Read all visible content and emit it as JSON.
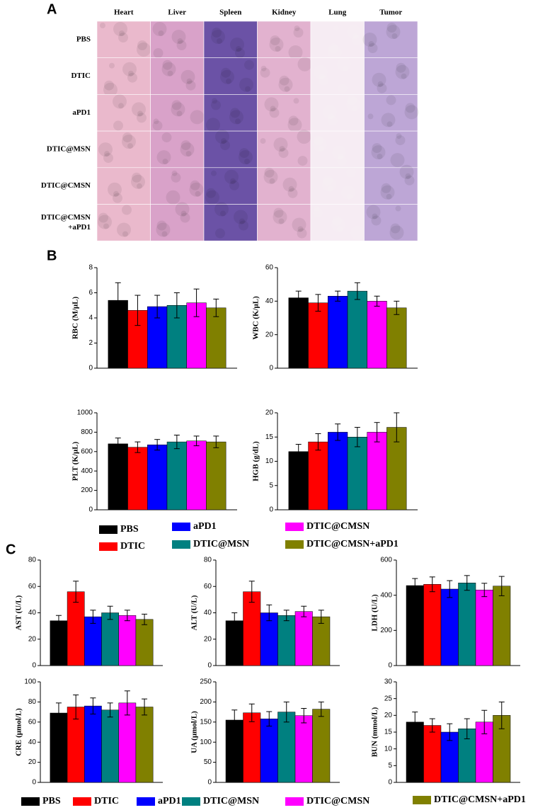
{
  "panel_labels": [
    "A",
    "B",
    "C"
  ],
  "histology": {
    "columns": [
      "Heart",
      "Liver",
      "Spleen",
      "Kidney",
      "Lung",
      "Tumor"
    ],
    "rows": [
      [
        "PBS"
      ],
      [
        "DTIC"
      ],
      [
        "aPD1"
      ],
      [
        "DTIC@MSN"
      ],
      [
        "DTIC@CMSN"
      ],
      [
        "DTIC@CMSN",
        "+aPD1"
      ]
    ]
  },
  "legend": {
    "items": [
      {
        "name": "PBS",
        "color": "#000000"
      },
      {
        "name": "DTIC",
        "color": "#ff0000"
      },
      {
        "name": "aPD1",
        "color": "#0000ff"
      },
      {
        "name": "DTIC@MSN",
        "color": "#008080"
      },
      {
        "name": "DTIC@CMSN",
        "color": "#ff00ff"
      },
      {
        "name": "DTIC@CMSN+aPD1",
        "color": "#808000"
      }
    ]
  },
  "chart_data": [
    {
      "type": "bar",
      "ylabel": "RBC (M/μL)",
      "ylim": [
        0,
        8
      ],
      "yticks": [
        0,
        2,
        4,
        6,
        8
      ],
      "values": [
        5.4,
        4.6,
        4.9,
        5.0,
        5.2,
        4.8
      ],
      "errors": [
        1.4,
        1.2,
        0.9,
        1.0,
        1.1,
        0.7
      ]
    },
    {
      "type": "bar",
      "ylabel": "WBC (K/μL)",
      "ylim": [
        0,
        60
      ],
      "yticks": [
        0,
        20,
        40,
        60
      ],
      "values": [
        42,
        39,
        43,
        46,
        40,
        36
      ],
      "errors": [
        4,
        5,
        3,
        5,
        3,
        4
      ]
    },
    {
      "type": "bar",
      "ylabel": "PLT (K/μL)",
      "ylim": [
        0,
        1000
      ],
      "yticks": [
        0,
        200,
        400,
        600,
        800,
        1000
      ],
      "values": [
        680,
        645,
        670,
        700,
        710,
        700
      ],
      "errors": [
        60,
        55,
        55,
        70,
        50,
        60
      ]
    },
    {
      "type": "bar",
      "ylabel": "HGB (g/dL)",
      "ylim": [
        0,
        20
      ],
      "yticks": [
        0,
        5,
        10,
        15,
        20
      ],
      "values": [
        12,
        14,
        16,
        15,
        16,
        17
      ],
      "errors": [
        1.5,
        1.7,
        1.7,
        2,
        2,
        3
      ]
    },
    {
      "type": "bar",
      "ylabel": "AST (U/L)",
      "ylim": [
        0,
        80
      ],
      "yticks": [
        0,
        20,
        40,
        60,
        80
      ],
      "values": [
        34,
        56,
        37,
        40,
        38,
        35
      ],
      "errors": [
        4,
        8,
        5,
        5,
        4,
        4
      ]
    },
    {
      "type": "bar",
      "ylabel": "ALT (U/L)",
      "ylim": [
        0,
        80
      ],
      "yticks": [
        0,
        20,
        40,
        60,
        80
      ],
      "values": [
        34,
        56,
        40,
        38,
        41,
        37
      ],
      "errors": [
        6,
        8,
        6,
        4,
        4,
        5
      ]
    },
    {
      "type": "bar",
      "ylabel": "LDH (U/L)",
      "ylim": [
        0,
        600
      ],
      "yticks": [
        0,
        200,
        400,
        600
      ],
      "values": [
        455,
        462,
        435,
        470,
        430,
        452
      ],
      "errors": [
        40,
        42,
        48,
        42,
        38,
        55
      ]
    },
    {
      "type": "bar",
      "ylabel": "CRE (μmol/L)",
      "ylim": [
        0,
        100
      ],
      "yticks": [
        0,
        20,
        40,
        60,
        80,
        100
      ],
      "values": [
        69,
        75,
        76,
        72,
        79,
        75
      ],
      "errors": [
        10,
        12,
        8,
        7,
        12,
        8
      ]
    },
    {
      "type": "bar",
      "ylabel": "UA (μmol/L)",
      "ylim": [
        0,
        250
      ],
      "yticks": [
        0,
        50,
        100,
        150,
        200,
        250
      ],
      "values": [
        155,
        173,
        158,
        175,
        166,
        182
      ],
      "errors": [
        25,
        22,
        18,
        25,
        18,
        18
      ]
    },
    {
      "type": "bar",
      "ylabel": "BUN (mmol/L)",
      "ylim": [
        0,
        30
      ],
      "yticks": [
        0,
        5,
        10,
        15,
        20,
        25,
        30
      ],
      "values": [
        18,
        17,
        15,
        16,
        18,
        20
      ],
      "errors": [
        3,
        2,
        2.5,
        3,
        3.5,
        4
      ]
    }
  ]
}
